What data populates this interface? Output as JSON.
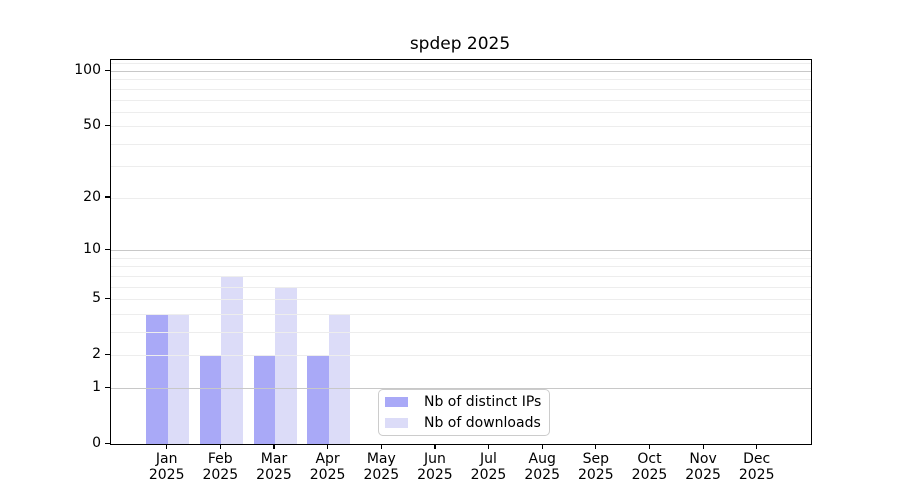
{
  "chart_data": {
    "type": "bar",
    "title": "spdep 2025",
    "categories": [
      "Jan 2025",
      "Feb 2025",
      "Mar 2025",
      "Apr 2025",
      "May 2025",
      "Jun 2025",
      "Jul 2025",
      "Aug 2025",
      "Sep 2025",
      "Oct 2025",
      "Nov 2025",
      "Dec 2025"
    ],
    "series": [
      {
        "name": "Nb of distinct IPs",
        "color": "#a9a9f7",
        "values": [
          4,
          2,
          2,
          2,
          0,
          0,
          0,
          0,
          0,
          0,
          0,
          0
        ]
      },
      {
        "name": "Nb of downloads",
        "color": "#dcdcf8",
        "values": [
          4,
          7,
          6,
          4,
          0,
          0,
          0,
          0,
          0,
          0,
          0,
          0
        ]
      }
    ],
    "yscale": "log1p",
    "ylim": [
      0,
      114.7
    ],
    "y_tick_labels": [
      0,
      1,
      2,
      5,
      10,
      20,
      50,
      100
    ],
    "grid_major_values": [
      1,
      10,
      100
    ],
    "grid_minor_values": [
      2,
      3,
      4,
      5,
      6,
      7,
      8,
      9,
      20,
      30,
      40,
      50,
      60,
      70,
      80,
      90,
      110
    ],
    "grid_on": true,
    "legend_position": "lower center",
    "colors": {
      "grid_minor": "#ededed",
      "grid_major": "#c8c8c8",
      "axis": "#000000",
      "text": "#000000",
      "background": "#ffffff"
    }
  }
}
